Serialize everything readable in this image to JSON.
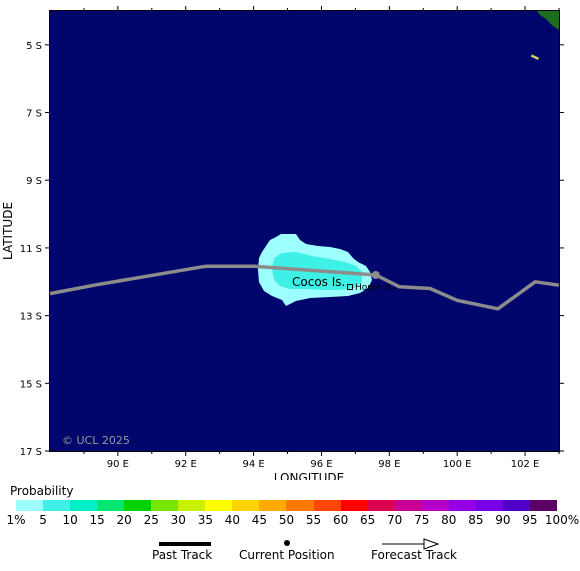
{
  "map": {
    "y_axis_title": "LATITUDE",
    "x_axis_title": "LONGITUDE",
    "lat_ticks": [
      "5 S",
      "7 S",
      "9 S",
      "11 S",
      "13 S",
      "15 S",
      "17 S"
    ],
    "lon_ticks": [
      "90 E",
      "92 E",
      "94 E",
      "96 E",
      "98 E",
      "100 E",
      "102 E"
    ],
    "ocean_color": "#00066b",
    "land_color": "#1e6e1e",
    "track_color": "#8c8c8c",
    "place_labels": {
      "cocos": "Cocos Is.",
      "home": "Home Is."
    },
    "copyright": "© UCL 2025",
    "track_points": [
      {
        "lon": 88.0,
        "lat": -12.35
      },
      {
        "lon": 89.3,
        "lat": -12.1
      },
      {
        "lon": 92.6,
        "lat": -11.54
      },
      {
        "lon": 94.0,
        "lat": -11.54
      },
      {
        "lon": 97.6,
        "lat": -11.8
      },
      {
        "lon": 98.3,
        "lat": -12.15
      },
      {
        "lon": 99.2,
        "lat": -12.2
      },
      {
        "lon": 100.0,
        "lat": -12.55
      },
      {
        "lon": 101.2,
        "lat": -12.8
      },
      {
        "lon": 102.3,
        "lat": -12.0
      },
      {
        "lon": 103.0,
        "lat": -12.1
      }
    ],
    "current_position": {
      "lon": 97.6,
      "lat": -11.8
    }
  },
  "legend": {
    "title": "Probability",
    "labels": [
      "1%",
      "5",
      "10",
      "15",
      "20",
      "25",
      "30",
      "35",
      "40",
      "45",
      "50",
      "55",
      "60",
      "65",
      "70",
      "75",
      "80",
      "85",
      "90",
      "95",
      "100%"
    ],
    "colors": [
      "#9effff",
      "#3ff0e6",
      "#00f0c8",
      "#00e670",
      "#00d200",
      "#78e600",
      "#c8f000",
      "#ffff00",
      "#ffd200",
      "#ffaa00",
      "#ff7800",
      "#ff4600",
      "#ff0000",
      "#dc0050",
      "#c80096",
      "#b400c8",
      "#9600e6",
      "#7800e6",
      "#5000c8",
      "#5a0064"
    ]
  },
  "key": {
    "past_track": "Past Track",
    "current_position": "Current Position",
    "forecast_track": "Forecast Track"
  }
}
